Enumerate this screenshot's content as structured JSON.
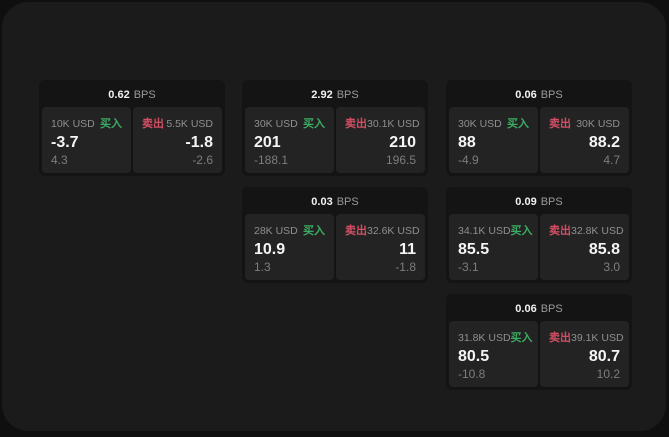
{
  "labels": {
    "bps_unit": "BPS",
    "buy": "买入",
    "sell": "卖出"
  },
  "colors": {
    "buy": "#3cab63",
    "sell": "#d24f63",
    "page_bg": "#0f0f10",
    "panel_bg": "#1b1b1c",
    "card_bg": "#141414",
    "pane_bg": "#232324"
  },
  "cards": [
    {
      "bps": "0.62",
      "buy": {
        "amount": "10K USD",
        "price": "-3.7",
        "change": "4.3"
      },
      "sell": {
        "amount": "5.5K USD",
        "price": "-1.8",
        "change": "-2.6"
      }
    },
    {
      "bps": "2.92",
      "buy": {
        "amount": "30K USD",
        "price": "201",
        "change": "-188.1"
      },
      "sell": {
        "amount": "30.1K USD",
        "price": "210",
        "change": "196.5"
      }
    },
    {
      "bps": "0.06",
      "buy": {
        "amount": "30K USD",
        "price": "88",
        "change": "-4.9"
      },
      "sell": {
        "amount": "30K USD",
        "price": "88.2",
        "change": "4.7"
      }
    },
    {
      "bps": "0.03",
      "buy": {
        "amount": "28K USD",
        "price": "10.9",
        "change": "1.3"
      },
      "sell": {
        "amount": "32.6K USD",
        "price": "11",
        "change": "-1.8"
      }
    },
    {
      "bps": "0.09",
      "buy": {
        "amount": "34.1K USD",
        "price": "85.5",
        "change": "-3.1"
      },
      "sell": {
        "amount": "32.8K USD",
        "price": "85.8",
        "change": "3.0"
      }
    },
    {
      "bps": "0.06",
      "buy": {
        "amount": "31.8K USD",
        "price": "80.5",
        "change": "-10.8"
      },
      "sell": {
        "amount": "39.1K USD",
        "price": "80.7",
        "change": "10.2"
      }
    }
  ]
}
